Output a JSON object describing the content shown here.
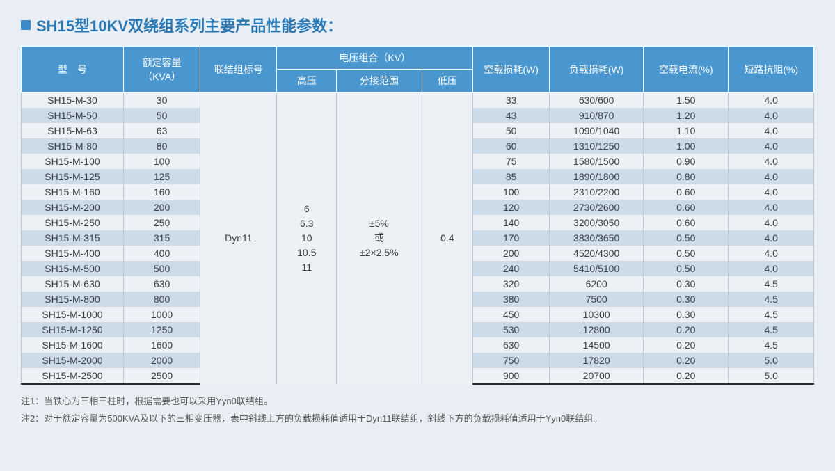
{
  "title": "SH15型10KV双绕组系列主要产品性能参数：",
  "columns": {
    "model": "型　号",
    "capacity": "额定容量（KVA）",
    "conn": "联结组标号",
    "voltage_group": "电压组合（KV）",
    "hv": "高压",
    "tap": "分接范围",
    "lv": "低压",
    "noload_loss": "空载损耗(W)",
    "load_loss": "负载损耗(W)",
    "noload_current": "空载电流(%)",
    "impedance": "短路抗阻(%)"
  },
  "merged": {
    "connection": "Dyn11",
    "hv": "6\n6.3\n10\n10.5\n11",
    "tap": "±5%\n或\n±2×2.5%",
    "lv": "0.4"
  },
  "rows": [
    {
      "model": "SH15-M-30",
      "cap": "30",
      "nl": "33",
      "ll": "630/600",
      "nc": "1.50",
      "imp": "4.0"
    },
    {
      "model": "SH15-M-50",
      "cap": "50",
      "nl": "43",
      "ll": "910/870",
      "nc": "1.20",
      "imp": "4.0"
    },
    {
      "model": "SH15-M-63",
      "cap": "63",
      "nl": "50",
      "ll": "1090/1040",
      "nc": "1.10",
      "imp": "4.0"
    },
    {
      "model": "SH15-M-80",
      "cap": "80",
      "nl": "60",
      "ll": "1310/1250",
      "nc": "1.00",
      "imp": "4.0"
    },
    {
      "model": "SH15-M-100",
      "cap": "100",
      "nl": "75",
      "ll": "1580/1500",
      "nc": "0.90",
      "imp": "4.0"
    },
    {
      "model": "SH15-M-125",
      "cap": "125",
      "nl": "85",
      "ll": "1890/1800",
      "nc": "0.80",
      "imp": "4.0"
    },
    {
      "model": "SH15-M-160",
      "cap": "160",
      "nl": "100",
      "ll": "2310/2200",
      "nc": "0.60",
      "imp": "4.0"
    },
    {
      "model": "SH15-M-200",
      "cap": "200",
      "nl": "120",
      "ll": "2730/2600",
      "nc": "0.60",
      "imp": "4.0"
    },
    {
      "model": "SH15-M-250",
      "cap": "250",
      "nl": "140",
      "ll": "3200/3050",
      "nc": "0.60",
      "imp": "4.0"
    },
    {
      "model": "SH15-M-315",
      "cap": "315",
      "nl": "170",
      "ll": "3830/3650",
      "nc": "0.50",
      "imp": "4.0"
    },
    {
      "model": "SH15-M-400",
      "cap": "400",
      "nl": "200",
      "ll": "4520/4300",
      "nc": "0.50",
      "imp": "4.0"
    },
    {
      "model": "SH15-M-500",
      "cap": "500",
      "nl": "240",
      "ll": "5410/5100",
      "nc": "0.50",
      "imp": "4.0"
    },
    {
      "model": "SH15-M-630",
      "cap": "630",
      "nl": "320",
      "ll": "6200",
      "nc": "0.30",
      "imp": "4.5"
    },
    {
      "model": "SH15-M-800",
      "cap": "800",
      "nl": "380",
      "ll": "7500",
      "nc": "0.30",
      "imp": "4.5"
    },
    {
      "model": "SH15-M-1000",
      "cap": "1000",
      "nl": "450",
      "ll": "10300",
      "nc": "0.30",
      "imp": "4.5"
    },
    {
      "model": "SH15-M-1250",
      "cap": "1250",
      "nl": "530",
      "ll": "12800",
      "nc": "0.20",
      "imp": "4.5"
    },
    {
      "model": "SH15-M-1600",
      "cap": "1600",
      "nl": "630",
      "ll": "14500",
      "nc": "0.20",
      "imp": "4.5"
    },
    {
      "model": "SH15-M-2000",
      "cap": "2000",
      "nl": "750",
      "ll": "17820",
      "nc": "0.20",
      "imp": "5.0"
    },
    {
      "model": "SH15-M-2500",
      "cap": "2500",
      "nl": "900",
      "ll": "20700",
      "nc": "0.20",
      "imp": "5.0"
    }
  ],
  "notes": [
    "注1：当铁心为三相三柱时，根据需要也可以采用Yyn0联结组。",
    "注2：对于额定容量为500KVA及以下的三相变压器，表中斜线上方的负载损耗值适用于Dyn11联结组，斜线下方的负载损耗值适用于Yyn0联结组。"
  ],
  "style": {
    "header_bg": "#4a97cf",
    "stripe_even": "#cbdbe8",
    "stripe_odd": "#edf1f6",
    "title_color": "#2a79b5",
    "bullet_color": "#3a8bc8"
  },
  "col_widths_pct": [
    12,
    9,
    9,
    7,
    10,
    6,
    9,
    11,
    10,
    10
  ]
}
